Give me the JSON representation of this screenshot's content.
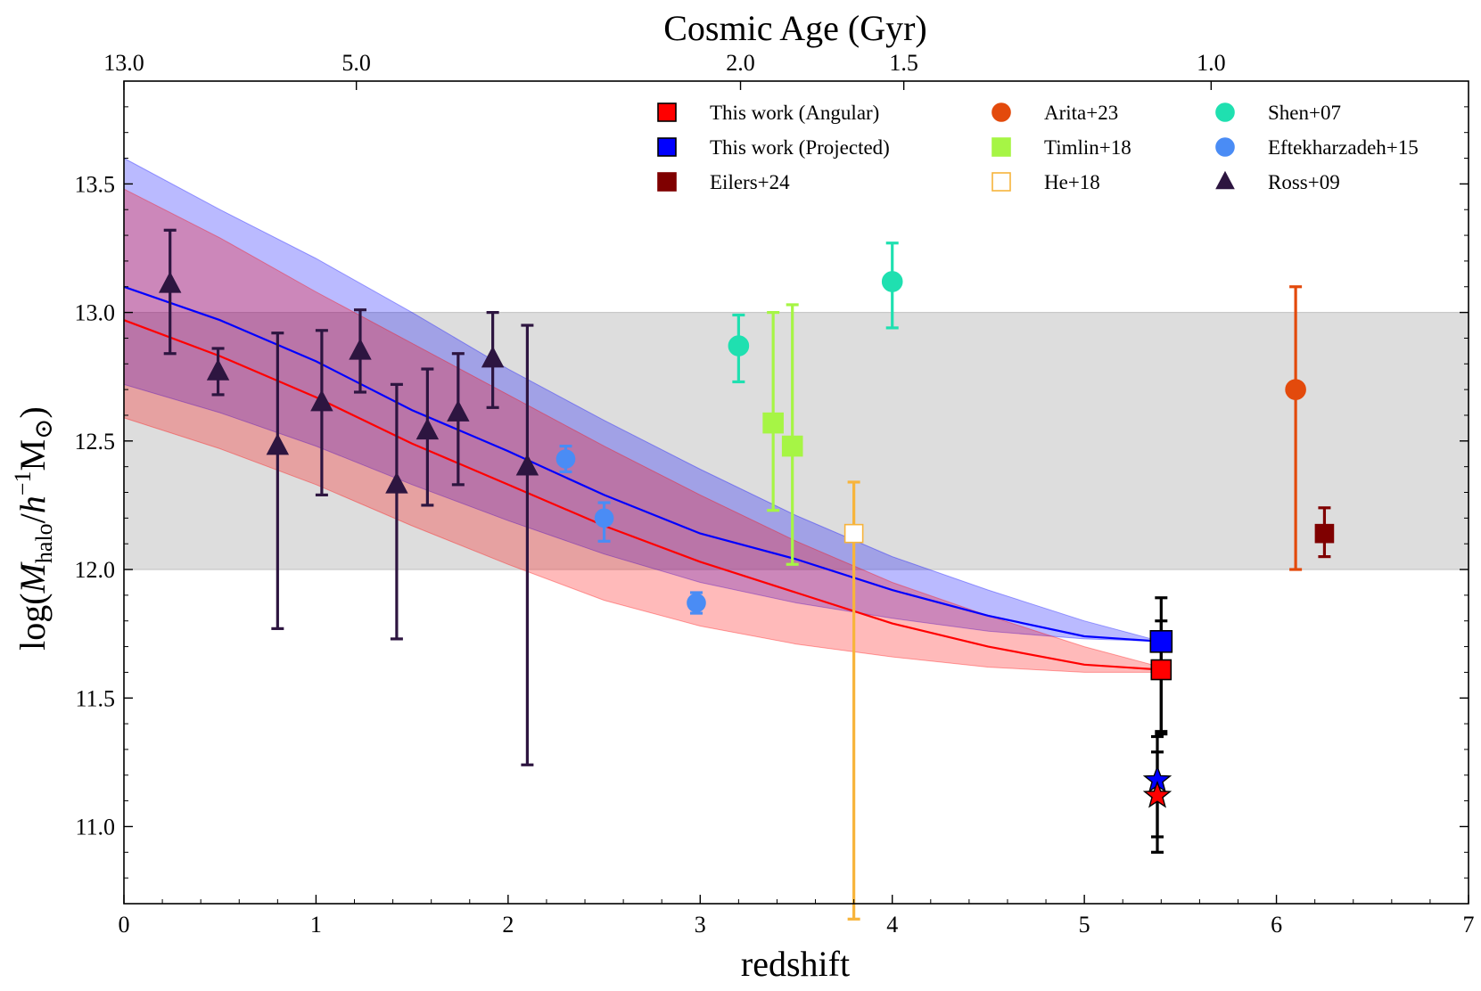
{
  "chart_data": {
    "type": "scatter",
    "xlabel": "redshift",
    "ylabel": "log(M_halo/h^-1M_⊙)",
    "top_axis_label": "Cosmic Age (Gyr)",
    "xlim": [
      0,
      7
    ],
    "ylim": [
      10.7,
      13.9
    ],
    "x_ticks": [
      0,
      1,
      2,
      3,
      4,
      5,
      6,
      7
    ],
    "x_tick_labels": [
      "0",
      "1",
      "2",
      "3",
      "4",
      "5",
      "6",
      "7"
    ],
    "y_ticks": [
      11.0,
      11.5,
      12.0,
      12.5,
      13.0,
      13.5
    ],
    "y_tick_labels": [
      "11.0",
      "11.5",
      "12.0",
      "12.5",
      "13.0",
      "13.5"
    ],
    "top_ticks": [
      {
        "label": "13.0",
        "z": 0.0
      },
      {
        "label": "5.0",
        "z": 1.21
      },
      {
        "label": "2.0",
        "z": 3.21
      },
      {
        "label": "1.5",
        "z": 4.06
      },
      {
        "label": "1.0",
        "z": 5.66
      }
    ],
    "shaded_band": {
      "y_min": 12.0,
      "y_max": 13.0,
      "color": "#dddddd"
    },
    "legend_position": "top-right",
    "bands": [
      {
        "color": "#0000ff",
        "x": [
          0,
          0.5,
          1,
          1.5,
          2,
          2.5,
          3,
          3.5,
          4,
          4.5,
          5,
          5.4
        ],
        "center": [
          13.1,
          12.97,
          12.81,
          12.62,
          12.46,
          12.29,
          12.14,
          12.04,
          11.92,
          11.82,
          11.74,
          11.72
        ],
        "upper": [
          13.6,
          13.4,
          13.21,
          13.0,
          12.78,
          12.58,
          12.39,
          12.21,
          12.05,
          11.92,
          11.8,
          11.72
        ],
        "lower": [
          12.72,
          12.61,
          12.48,
          12.33,
          12.19,
          12.06,
          11.95,
          11.87,
          11.81,
          11.76,
          11.73,
          11.72
        ]
      },
      {
        "color": "#ff0000",
        "x": [
          0,
          0.5,
          1,
          1.5,
          2,
          2.5,
          3,
          3.5,
          4,
          4.5,
          5,
          5.4
        ],
        "center": [
          12.97,
          12.83,
          12.67,
          12.49,
          12.33,
          12.17,
          12.03,
          11.91,
          11.79,
          11.7,
          11.63,
          11.61
        ],
        "upper": [
          13.48,
          13.29,
          13.08,
          12.88,
          12.68,
          12.48,
          12.29,
          12.11,
          11.95,
          11.82,
          11.7,
          11.62
        ],
        "lower": [
          12.59,
          12.47,
          12.33,
          12.17,
          12.02,
          11.88,
          11.78,
          11.71,
          11.66,
          11.62,
          11.6,
          11.6
        ]
      }
    ],
    "series": [
      {
        "name": "This work (Angular)",
        "marker": "square",
        "color": "#ff0000",
        "edge": "#000000",
        "filled": true,
        "size": 22,
        "ecolor": "#000000",
        "points": [
          {
            "x": 5.4,
            "y": 11.61,
            "yerr": [
              0.24,
              0.19
            ]
          }
        ]
      },
      {
        "name": "This work (Projected)",
        "marker": "square",
        "color": "#0000ff",
        "edge": "#000000",
        "filled": true,
        "size": 24,
        "ecolor": "#000000",
        "points": [
          {
            "x": 5.4,
            "y": 11.72,
            "yerr": [
              0.36,
              0.17
            ]
          }
        ]
      },
      {
        "name": "Eilers+24",
        "marker": "square",
        "color": "#7f0000",
        "edge": "#7f0000",
        "filled": true,
        "size": 20,
        "ecolor": "#7f0000",
        "points": [
          {
            "x": 6.25,
            "y": 12.14,
            "yerr": [
              0.09,
              0.1
            ]
          }
        ]
      },
      {
        "name": "Arita+23",
        "marker": "circle",
        "color": "#e34a0c",
        "edge": "#e34a0c",
        "filled": true,
        "size": 22,
        "ecolor": "#e34a0c",
        "points": [
          {
            "x": 6.1,
            "y": 12.7,
            "yerr": [
              0.7,
              0.4
            ]
          }
        ]
      },
      {
        "name": "Timlin+18",
        "marker": "square",
        "color": "#a6f545",
        "edge": "#a6f545",
        "filled": true,
        "size": 22,
        "ecolor": "#a6f545",
        "points": [
          {
            "x": 3.38,
            "y": 12.57,
            "yerr": [
              0.34,
              0.43
            ]
          },
          {
            "x": 3.48,
            "y": 12.48,
            "yerr": [
              0.46,
              0.55
            ]
          }
        ]
      },
      {
        "name": "He+18",
        "marker": "square",
        "color": "#ffffff",
        "edge": "#f7b43b",
        "filled": false,
        "size": 20,
        "ecolor": "#f7b43b",
        "points": [
          {
            "x": 3.8,
            "y": 12.14,
            "yerr": [
              1.5,
              0.2
            ]
          }
        ]
      },
      {
        "name": "Shen+07",
        "marker": "circle",
        "color": "#1fe0b0",
        "edge": "#1fe0b0",
        "filled": true,
        "size": 22,
        "ecolor": "#1fe0b0",
        "points": [
          {
            "x": 3.2,
            "y": 12.87,
            "yerr": [
              0.14,
              0.12
            ]
          },
          {
            "x": 4.0,
            "y": 13.12,
            "yerr": [
              0.18,
              0.15
            ]
          }
        ]
      },
      {
        "name": "Eftekharzadeh+15",
        "marker": "circle",
        "color": "#4a8cf5",
        "edge": "#4a8cf5",
        "filled": true,
        "size": 20,
        "ecolor": "#4a8cf5",
        "points": [
          {
            "x": 2.3,
            "y": 12.43,
            "yerr": [
              0.05,
              0.05
            ]
          },
          {
            "x": 2.5,
            "y": 12.2,
            "yerr": [
              0.09,
              0.06
            ]
          },
          {
            "x": 2.98,
            "y": 11.87,
            "yerr": [
              0.04,
              0.04
            ]
          }
        ]
      },
      {
        "name": "Ross+09",
        "marker": "triangle",
        "color": "#2d1540",
        "edge": "#2d1540",
        "filled": true,
        "size": 24,
        "ecolor": "#2d1540",
        "points": [
          {
            "x": 0.24,
            "y": 13.11,
            "yerr": [
              0.27,
              0.21
            ]
          },
          {
            "x": 0.49,
            "y": 12.77,
            "yerr": [
              0.09,
              0.09
            ]
          },
          {
            "x": 0.8,
            "y": 12.48,
            "yerr": [
              0.71,
              0.44
            ]
          },
          {
            "x": 1.03,
            "y": 12.65,
            "yerr": [
              0.36,
              0.28
            ]
          },
          {
            "x": 1.23,
            "y": 12.85,
            "yerr": [
              0.16,
              0.16
            ]
          },
          {
            "x": 1.42,
            "y": 12.33,
            "yerr": [
              0.6,
              0.39
            ]
          },
          {
            "x": 1.58,
            "y": 12.54,
            "yerr": [
              0.29,
              0.24
            ]
          },
          {
            "x": 1.74,
            "y": 12.61,
            "yerr": [
              0.28,
              0.23
            ]
          },
          {
            "x": 1.92,
            "y": 12.82,
            "yerr": [
              0.19,
              0.18
            ]
          },
          {
            "x": 2.1,
            "y": 12.4,
            "yerr": [
              1.16,
              0.55
            ]
          }
        ]
      },
      {
        "name": "",
        "marker": "star",
        "color": "#0000ff",
        "edge": "#000000",
        "filled": true,
        "size": 30,
        "ecolor": "#000000",
        "points": [
          {
            "x": 5.38,
            "y": 11.18,
            "yerr": [
              0.22,
              0.17
            ]
          }
        ]
      },
      {
        "name": "",
        "marker": "star",
        "color": "#ff0000",
        "edge": "#000000",
        "filled": true,
        "size": 30,
        "ecolor": "#000000",
        "points": [
          {
            "x": 5.38,
            "y": 11.12,
            "yerr": [
              0.22,
              0.17
            ]
          }
        ]
      }
    ]
  }
}
